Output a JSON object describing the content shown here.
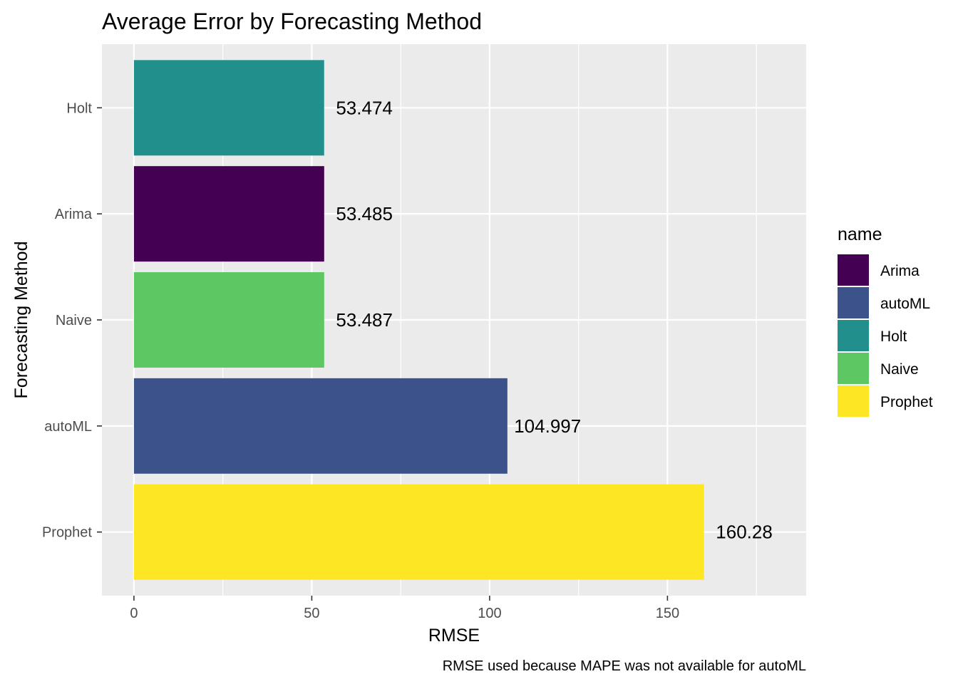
{
  "chart_data": {
    "type": "bar",
    "orientation": "horizontal",
    "title": "Average Error by Forecasting Method",
    "xlabel": "RMSE",
    "ylabel": "Forecasting Method",
    "caption": "RMSE used because MAPE was not available for autoML",
    "categories": [
      "Holt",
      "Arima",
      "Naive",
      "autoML",
      "Prophet"
    ],
    "values": [
      53.474,
      53.485,
      53.487,
      104.997,
      160.28
    ],
    "value_labels": [
      "53.474",
      "53.485",
      "53.487",
      "104.997",
      "160.28"
    ],
    "colors": [
      "#21908C",
      "#440154",
      "#5DC863",
      "#3B528B",
      "#FDE725"
    ],
    "xlim": [
      -9,
      189
    ],
    "xticks": [
      0,
      50,
      100,
      150
    ],
    "xtick_labels": [
      "0",
      "50",
      "100",
      "150"
    ],
    "grid": true,
    "panel_background": "#EBEBEB",
    "legend": {
      "title": "name",
      "position": "right",
      "items": [
        {
          "label": "Arima",
          "color": "#440154"
        },
        {
          "label": "autoML",
          "color": "#3B528B"
        },
        {
          "label": "Holt",
          "color": "#21908C"
        },
        {
          "label": "Naive",
          "color": "#5DC863"
        },
        {
          "label": "Prophet",
          "color": "#FDE725"
        }
      ]
    }
  }
}
